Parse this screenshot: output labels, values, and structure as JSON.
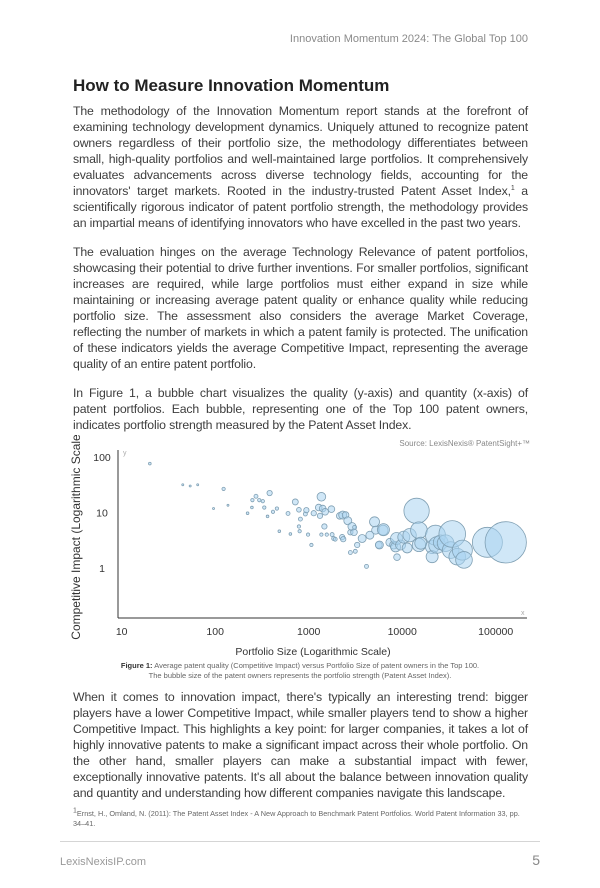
{
  "header": {
    "running_title": "Innovation Momentum 2024: The Global Top 100"
  },
  "section": {
    "title": "How to Measure Innovation Momentum"
  },
  "paragraphs": {
    "p1_a": "The methodology of the Innovation Momentum report stands at the forefront of examining technology development dynamics. Uniquely attuned to recognize patent owners regardless of their portfolio size, the methodology differentiates between small, high-quality portfolios and well-maintained large portfolios. It comprehensively evaluates advancements across diverse technology fields, accounting for the innovators' target markets. Rooted in the industry-trusted Patent Asset Index,",
    "p1_sup": "1",
    "p1_b": " a scientifically rigorous indicator of patent portfolio strength, the methodology provides an impartial means of identifying innovators who have excelled in the past two years.",
    "p2": "The evaluation hinges on the average Technology Relevance of patent portfolios, showcasing their potential to drive further inventions. For smaller portfolios, significant increases are required, while large portfolios must either expand in size while maintaining or increasing average patent quality or enhance quality while reducing portfolio size. The assessment also considers the average Market Coverage, reflecting the number of markets in which a patent family is protected. The unification of these indicators yields the average Competitive Impact, representing the average quality of an entire patent portfolio.",
    "p3": "In Figure 1, a bubble chart visualizes the quality (y-axis) and quantity (x-axis) of patent portfolios. Each bubble, representing one of the Top 100 patent owners, indicates portfolio strength measured by the Patent Asset Index.",
    "p4": "When it comes to innovation impact, there's typically an interesting trend: bigger players have a lower Competitive Impact, while smaller players tend to show a higher Competitive Impact. This highlights a key point: for larger companies, it takes a lot of highly innovative patents to make a significant impact across their whole portfolio. On the other hand, smaller players can make a substantial impact with fewer, exceptionally innovative patents. It's all about the balance between innovation quality and quantity and understanding how different companies navigate this landscape."
  },
  "figure": {
    "caption_label": "Figure 1:",
    "caption_line1": " Average patent quality (Competitive Impact) versus Portfolio Size of patent owners in the Top 100.",
    "caption_line2": "The bubble size of the patent owners represents the portfolio strength (Patent Asset Index)."
  },
  "chart_data": {
    "type": "scatter",
    "subtype": "bubble",
    "source": "Source: LexisNexis® PatentSight+™",
    "xlabel": "Portfolio Size (Logarithmic Scale)",
    "ylabel": "Competitive Impact (Logarithmic Scale)",
    "x_axis_letter": "x",
    "y_axis_letter": "y",
    "x_scale": "log",
    "y_scale": "log",
    "xlim": [
      10,
      150000
    ],
    "ylim": [
      0.13,
      130
    ],
    "x_ticks": [
      "10",
      "100",
      "1000",
      "10000",
      "100000"
    ],
    "x_tick_values": [
      10,
      100,
      1000,
      10000,
      100000
    ],
    "y_ticks": [
      "100",
      "10",
      "1"
    ],
    "y_tick_values": [
      100,
      10,
      1
    ],
    "grid": false,
    "bubble_fill": "#a9d3f0",
    "bubble_stroke": "#7f9fb3",
    "points_format": [
      "portfolio_size",
      "competitive_impact",
      "relative_strength"
    ],
    "points": [
      [
        20,
        76,
        16
      ],
      [
        45,
        31.6,
        9
      ],
      [
        54,
        30,
        9
      ],
      [
        65,
        31.6,
        9
      ],
      [
        96,
        11.8,
        9
      ],
      [
        123,
        26.6,
        25
      ],
      [
        137,
        13.5,
        9
      ],
      [
        222,
        9.7,
        16
      ],
      [
        247,
        12.3,
        16
      ],
      [
        250,
        16.7,
        25
      ],
      [
        273,
        19.6,
        36
      ],
      [
        296,
        16.7,
        25
      ],
      [
        323,
        16,
        25
      ],
      [
        335,
        12.3,
        25
      ],
      [
        363,
        8.5,
        16
      ],
      [
        382,
        22.4,
        64
      ],
      [
        415,
        10.3,
        25
      ],
      [
        457,
        11.8,
        25
      ],
      [
        485,
        4.6,
        16
      ],
      [
        601,
        9.6,
        36
      ],
      [
        637,
        4.1,
        16
      ],
      [
        719,
        15.5,
        81
      ],
      [
        786,
        11.2,
        49
      ],
      [
        786,
        5.6,
        25
      ],
      [
        800,
        4.6,
        25
      ],
      [
        815,
        7.6,
        36
      ],
      [
        921,
        9.4,
        36
      ],
      [
        944,
        11,
        64
      ],
      [
        984,
        4,
        25
      ],
      [
        1069,
        2.6,
        25
      ],
      [
        1132,
        9.7,
        64
      ],
      [
        1280,
        12.3,
        100
      ],
      [
        1320,
        8.7,
        64
      ],
      [
        1367,
        19.2,
        169
      ],
      [
        1410,
        11.8,
        100
      ],
      [
        1472,
        5.6,
        64
      ],
      [
        1500,
        10.3,
        100
      ],
      [
        1367,
        4,
        25
      ],
      [
        1560,
        4,
        25
      ],
      [
        1750,
        11.5,
        100
      ],
      [
        1780,
        4,
        36
      ],
      [
        1850,
        3.4,
        36
      ],
      [
        1920,
        3.3,
        36
      ],
      [
        2150,
        8.7,
        100
      ],
      [
        2310,
        9,
        144
      ],
      [
        2480,
        9,
        100
      ],
      [
        2280,
        3.6,
        64
      ],
      [
        2340,
        3.3,
        64
      ],
      [
        2620,
        7.1,
        144
      ],
      [
        2790,
        4.4,
        64
      ],
      [
        2900,
        5.6,
        144
      ],
      [
        3050,
        4.4,
        100
      ],
      [
        3100,
        5.4,
        36
      ],
      [
        2790,
        1.9,
        36
      ],
      [
        3150,
        2,
        36
      ],
      [
        3300,
        2.6,
        64
      ],
      [
        3730,
        3.4,
        144
      ],
      [
        4150,
        1.07,
        36
      ],
      [
        4510,
        3.9,
        144
      ],
      [
        5060,
        6.8,
        225
      ],
      [
        5200,
        4.8,
        144
      ],
      [
        5620,
        2.6,
        100
      ],
      [
        5700,
        2.6,
        144
      ],
      [
        6250,
        4.8,
        225
      ],
      [
        6300,
        4.9,
        324
      ],
      [
        7380,
        2.9,
        144
      ],
      [
        8100,
        2.6,
        144
      ],
      [
        8500,
        2.4,
        225
      ],
      [
        8800,
        1.57,
        100
      ],
      [
        8700,
        3.4,
        324
      ],
      [
        9600,
        2.6,
        225
      ],
      [
        10400,
        3.6,
        324
      ],
      [
        11300,
        2.3,
        225
      ],
      [
        12000,
        3.9,
        400
      ],
      [
        14250,
        10.7,
        1444
      ],
      [
        15100,
        4.8,
        625
      ],
      [
        15100,
        2.6,
        400
      ],
      [
        15800,
        2.8,
        324
      ],
      [
        20900,
        2.4,
        400
      ],
      [
        20900,
        1.6,
        324
      ],
      [
        22700,
        3.9,
        900
      ],
      [
        23600,
        2.6,
        625
      ],
      [
        25800,
        2.9,
        484
      ],
      [
        29100,
        2.8,
        625
      ],
      [
        33000,
        2.1,
        625
      ],
      [
        34300,
        4.1,
        1600
      ],
      [
        38800,
        1.6,
        625
      ],
      [
        44000,
        2.1,
        900
      ],
      [
        45800,
        1.4,
        625
      ],
      [
        81500,
        2.9,
        2025
      ],
      [
        128000,
        2.9,
        3844
      ]
    ]
  },
  "footnote": {
    "marker": "1",
    "text": "Ernst, H., Omland, N. (2011): The Patent Asset Index - A New Approach to Benchmark Patent Portfolios. World Patent Information 33, pp. 34–41."
  },
  "footer": {
    "site": "LexisNexisIP.com",
    "page_number": "5"
  }
}
